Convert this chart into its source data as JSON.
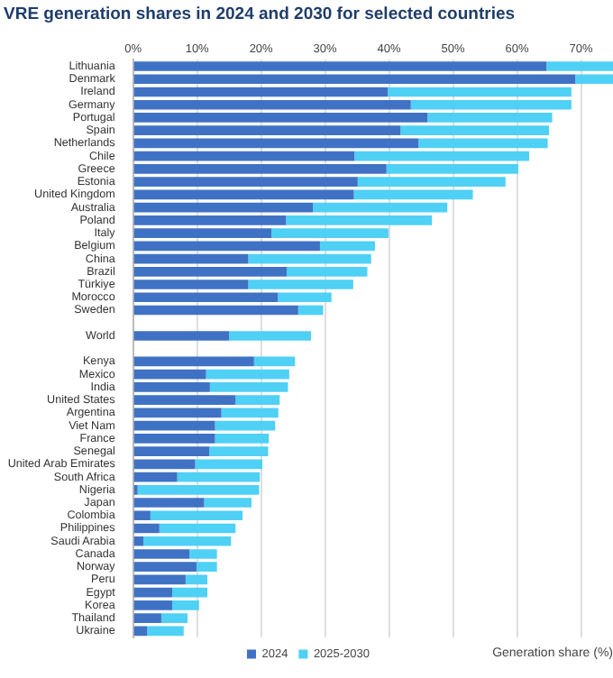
{
  "chart_data": {
    "type": "bar",
    "orientation": "horizontal",
    "stacked": true,
    "title": "VRE generation shares in 2024 and 2030 for selected countries",
    "xlabel": "Generation share (%)",
    "categories": [
      "Lithuania",
      "Denmark",
      "Ireland",
      "Germany",
      "Portugal",
      "Spain",
      "Netherlands",
      "Chile",
      "Greece",
      "Estonia",
      "United Kingdom",
      "Australia",
      "Poland",
      "Italy",
      "Belgium",
      "China",
      "Brazil",
      "Türkiye",
      "Morocco",
      "Sweden",
      null,
      "World",
      null,
      "Kenya",
      "Mexico",
      "India",
      "United States",
      "Argentina",
      "Viet Nam",
      "France",
      "Senegal",
      "United Arab Emirates",
      "South Africa",
      "Nigeria",
      "Japan",
      "Colombia",
      "Philippines",
      "Saudi Arabia",
      "Canada",
      "Norway",
      "Peru",
      "Egypt",
      "Korea",
      "Thailand",
      "Ukraine"
    ],
    "series": [
      {
        "name": "2024",
        "color": "#3f72c4",
        "values": [
          64.6,
          69.1,
          39.8,
          43.4,
          46.0,
          41.8,
          44.6,
          34.6,
          39.6,
          35.1,
          34.5,
          28.1,
          23.9,
          21.6,
          29.2,
          18.0,
          24.0,
          18.0,
          22.6,
          25.8,
          null,
          15.0,
          null,
          18.9,
          11.4,
          12.0,
          16.0,
          13.8,
          12.8,
          12.8,
          11.9,
          9.7,
          6.9,
          0.7,
          11.1,
          2.7,
          4.1,
          1.6,
          8.8,
          9.9,
          8.2,
          6.1,
          6.1,
          4.4,
          2.2
        ]
      },
      {
        "name": "2025-2030",
        "color": "#4fd0f5",
        "values": [
          10.4,
          5.9,
          28.7,
          25.1,
          19.5,
          23.2,
          20.2,
          27.3,
          20.6,
          23.1,
          18.6,
          21.0,
          22.8,
          18.3,
          8.6,
          19.2,
          12.6,
          16.4,
          8.4,
          3.9,
          null,
          12.8,
          null,
          6.4,
          13.0,
          12.2,
          6.9,
          8.9,
          9.4,
          8.4,
          9.2,
          10.5,
          12.9,
          19.0,
          7.4,
          14.4,
          11.9,
          13.7,
          4.3,
          3.2,
          3.4,
          5.5,
          4.2,
          4.1,
          5.7
        ]
      }
    ],
    "xlim": [
      0,
      75
    ],
    "xticks": [
      {
        "value": 0,
        "label": "0%"
      },
      {
        "value": 10,
        "label": "10%"
      },
      {
        "value": 20,
        "label": "20%"
      },
      {
        "value": 30,
        "label": "30%"
      },
      {
        "value": 40,
        "label": "40%"
      },
      {
        "value": 50,
        "label": "50%"
      },
      {
        "value": 60,
        "label": "60%"
      },
      {
        "value": 70,
        "label": "70%"
      }
    ],
    "grid": "x",
    "legend": "bottom"
  }
}
